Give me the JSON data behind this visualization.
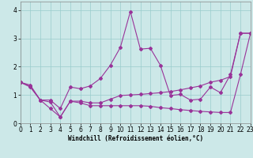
{
  "xlabel": "Windchill (Refroidissement éolien,°C)",
  "bg_color": "#cce8e8",
  "grid_color": "#99cccc",
  "line_color": "#993399",
  "xlim": [
    0,
    23
  ],
  "ylim": [
    0,
    4.3
  ],
  "xticks": [
    0,
    1,
    2,
    3,
    4,
    5,
    6,
    7,
    8,
    9,
    10,
    11,
    12,
    13,
    14,
    15,
    16,
    17,
    18,
    19,
    20,
    21,
    22,
    23
  ],
  "yticks": [
    0,
    1,
    2,
    3,
    4
  ],
  "s1_x": [
    0,
    1,
    2,
    3,
    4,
    5,
    6,
    7,
    8,
    9,
    10,
    11,
    12,
    13,
    14,
    15,
    16,
    17,
    18,
    19,
    20,
    21,
    22,
    23
  ],
  "s1_y": [
    1.45,
    1.35,
    0.82,
    0.82,
    0.52,
    1.28,
    1.22,
    1.32,
    1.58,
    2.05,
    2.68,
    3.95,
    2.62,
    2.65,
    2.05,
    0.98,
    1.02,
    0.82,
    0.85,
    1.28,
    1.08,
    1.72,
    3.18,
    3.18
  ],
  "s2_x": [
    0,
    1,
    2,
    3,
    4,
    5,
    6,
    7,
    8,
    9,
    10,
    11,
    12,
    13,
    14,
    15,
    16,
    17,
    18,
    19,
    20,
    21,
    22,
    23
  ],
  "s2_y": [
    1.45,
    1.3,
    0.82,
    0.75,
    0.22,
    0.78,
    0.78,
    0.72,
    0.72,
    0.85,
    0.98,
    1.0,
    1.02,
    1.05,
    1.08,
    1.12,
    1.18,
    1.25,
    1.32,
    1.45,
    1.52,
    1.65,
    3.18,
    3.18
  ],
  "s3_x": [
    0,
    1,
    2,
    3,
    4,
    5,
    6,
    7,
    8,
    9,
    10,
    11,
    12,
    13,
    14,
    15,
    16,
    17,
    18,
    19,
    20,
    21,
    22,
    23
  ],
  "s3_y": [
    1.45,
    1.28,
    0.82,
    0.52,
    0.22,
    0.78,
    0.72,
    0.62,
    0.62,
    0.62,
    0.62,
    0.62,
    0.62,
    0.6,
    0.55,
    0.52,
    0.48,
    0.45,
    0.42,
    0.4,
    0.38,
    0.38,
    1.72,
    3.18
  ],
  "tick_fontsize": 5.5,
  "xlabel_fontsize": 5.5
}
